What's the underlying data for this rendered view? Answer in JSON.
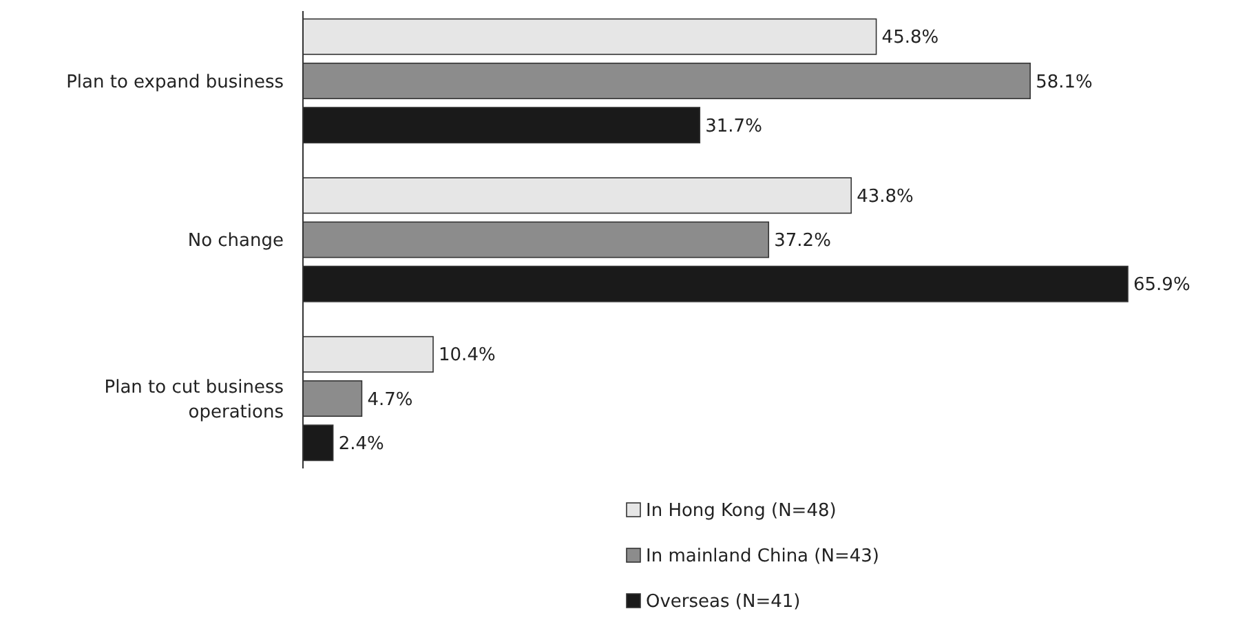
{
  "chart_data": {
    "type": "bar",
    "orientation": "horizontal",
    "categories": [
      "Plan to expand business",
      "No change",
      "Plan to cut business operations"
    ],
    "series": [
      {
        "name": "In Hong Kong (N=48)",
        "color": "#e6e6e6",
        "values": [
          45.8,
          43.8,
          10.4
        ],
        "value_labels": [
          "45.8%",
          "43.8%",
          "10.4%"
        ]
      },
      {
        "name": "In mainland China (N=43)",
        "color": "#8c8c8c",
        "values": [
          58.1,
          37.2,
          4.7
        ],
        "value_labels": [
          "58.1%",
          "37.2%",
          "4.7%"
        ]
      },
      {
        "name": "Overseas (N=41)",
        "color": "#1a1a1a",
        "values": [
          31.7,
          65.9,
          2.4
        ],
        "value_labels": [
          "31.7%",
          "65.9%",
          "2.4%"
        ]
      }
    ],
    "legend": "bottom",
    "tick_labels": "y",
    "grid": false
  }
}
